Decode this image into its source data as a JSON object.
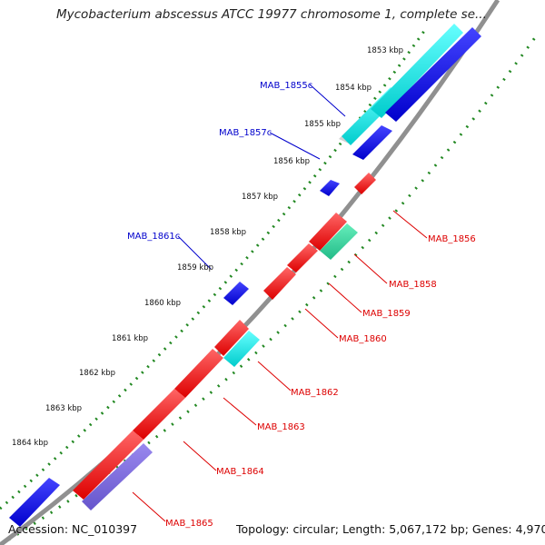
{
  "title": "Mycobacterium abscessus ATCC 19977 chromosome 1, complete se...",
  "footer": {
    "accession": "Accession: NC_010397",
    "topology": "Topology: circular;",
    "length": "Length: 5,067,172 bp;",
    "genes": "Genes: 4,970"
  },
  "scale_labels": [
    "1853 kbp",
    "1854 kbp",
    "1855 kbp",
    "1856 kbp",
    "1857 kbp",
    "1858 kbp",
    "1859 kbp",
    "1860 kbp",
    "1861 kbp",
    "1862 kbp",
    "1863 kbp",
    "1864 kbp"
  ],
  "reverse_gene_labels": [
    "MAB_1855c",
    "MAB_1857c",
    "MAB_1861c"
  ],
  "forward_gene_labels": [
    "MAB_1856",
    "MAB_1858",
    "MAB_1859",
    "MAB_1860",
    "MAB_1862",
    "MAB_1863",
    "MAB_1864",
    "MAB_1865"
  ],
  "colors": {
    "forward_gene": "#ff0000",
    "reverse_gene": "#0000ee",
    "cyan_feature": "#22dddd",
    "teal_feature": "#22cc99",
    "lavender_feature": "#7766dd",
    "backbone": "#888888",
    "scale_ticks": "#228822",
    "reverse_label": "#0000cc",
    "forward_label": "#dd0000"
  }
}
